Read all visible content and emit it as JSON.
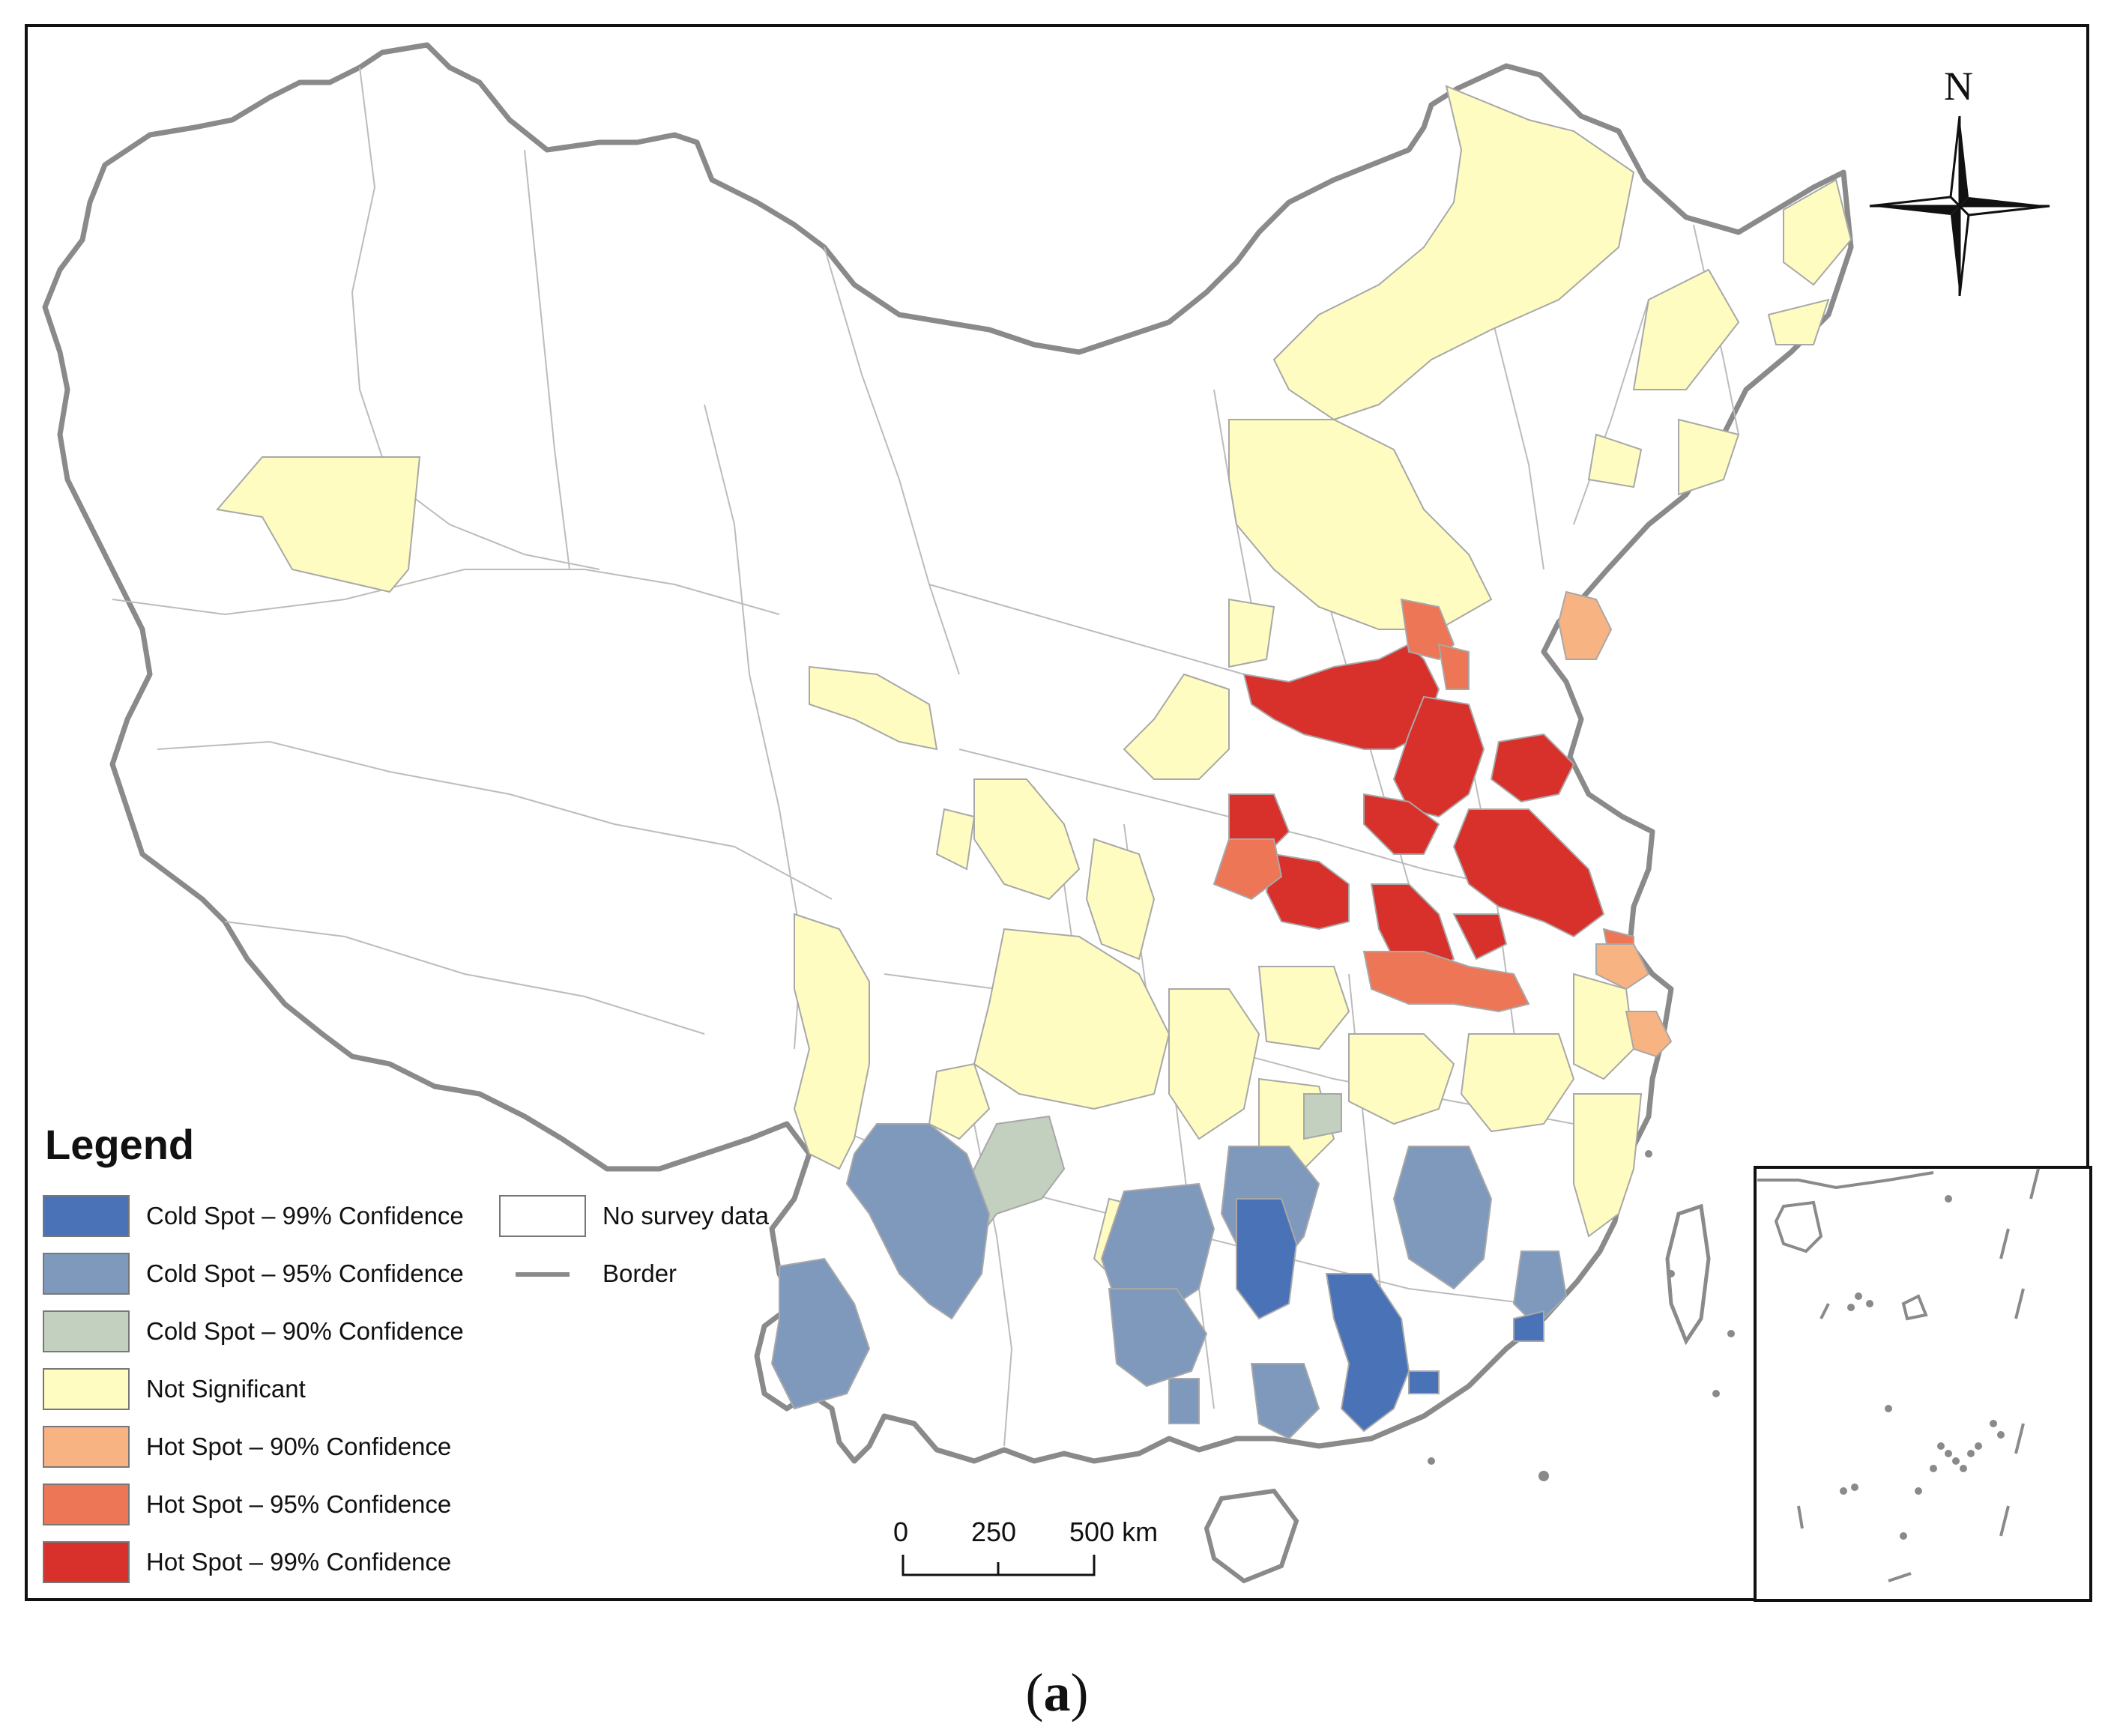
{
  "legend": {
    "title": "Legend",
    "items": [
      {
        "label": "Cold Spot – 99% Confidence",
        "color": "#4a72b6"
      },
      {
        "label": "Cold Spot – 95% Confidence",
        "color": "#7f99bd"
      },
      {
        "label": "Cold Spot – 90% Confidence",
        "color": "#c3cfbf"
      },
      {
        "label": "Not Significant",
        "color": "#fefcc0"
      },
      {
        "label": "Hot Spot – 90% Confidence",
        "color": "#f8b383"
      },
      {
        "label": "Hot Spot – 95% Confidence",
        "color": "#ec7656"
      },
      {
        "label": "Hot Spot – 99% Confidence",
        "color": "#d8302a"
      },
      {
        "label": "No survey data",
        "color": "#ffffff"
      },
      {
        "label": "Border",
        "color": "#8a8a8a"
      }
    ]
  },
  "scale_bar": {
    "ticks": [
      "0",
      "250",
      "500 km"
    ]
  },
  "north_arrow": {
    "label": "N"
  },
  "caption": {
    "open": "(",
    "letter": "a",
    "close": ")"
  }
}
